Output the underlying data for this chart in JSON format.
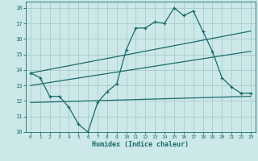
{
  "xlabel": "Humidex (Indice chaleur)",
  "background_color": "#cce8e8",
  "grid_color": "#aacccc",
  "line_color": "#1a6b6b",
  "xlim": [
    -0.5,
    23.5
  ],
  "ylim": [
    10,
    18.4
  ],
  "yticks": [
    10,
    11,
    12,
    13,
    14,
    15,
    16,
    17,
    18
  ],
  "xticks": [
    0,
    1,
    2,
    3,
    4,
    5,
    6,
    7,
    8,
    9,
    10,
    11,
    12,
    13,
    14,
    15,
    16,
    17,
    18,
    19,
    20,
    21,
    22,
    23
  ],
  "line1_x": [
    0,
    1,
    2,
    3,
    4,
    5,
    6,
    7,
    8,
    9,
    10,
    11,
    12,
    13,
    14,
    15,
    16,
    17,
    18,
    19,
    20,
    21,
    22,
    23
  ],
  "line1_y": [
    13.8,
    13.5,
    12.3,
    12.3,
    11.6,
    10.5,
    10.0,
    11.9,
    12.6,
    13.1,
    15.3,
    16.7,
    16.7,
    17.1,
    17.0,
    18.0,
    17.5,
    17.8,
    16.5,
    15.2,
    13.5,
    12.9,
    12.5,
    12.5
  ],
  "line2_x": [
    0,
    23
  ],
  "line2_y": [
    13.8,
    16.5
  ],
  "line3_x": [
    0,
    23
  ],
  "line3_y": [
    13.0,
    15.2
  ],
  "line4_x": [
    0,
    23
  ],
  "line4_y": [
    11.9,
    12.3
  ]
}
